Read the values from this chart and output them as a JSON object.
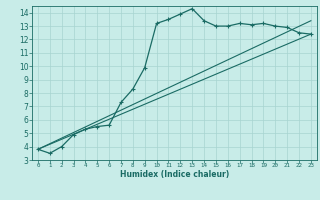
{
  "xlabel": "Humidex (Indice chaleur)",
  "bg_color": "#c8ece8",
  "grid_color": "#a8d4d0",
  "line_color": "#1a6b64",
  "xlim": [
    -0.5,
    23.5
  ],
  "ylim": [
    3,
    14.5
  ],
  "xticks": [
    0,
    1,
    2,
    3,
    4,
    5,
    6,
    7,
    8,
    9,
    10,
    11,
    12,
    13,
    14,
    15,
    16,
    17,
    18,
    19,
    20,
    21,
    22,
    23
  ],
  "yticks": [
    3,
    4,
    5,
    6,
    7,
    8,
    9,
    10,
    11,
    12,
    13,
    14
  ],
  "curve1_x": [
    0,
    1,
    2,
    3,
    4,
    5,
    6,
    7,
    8,
    9,
    10,
    11,
    12,
    13,
    14,
    15,
    16,
    17,
    18,
    19,
    20,
    21,
    22,
    23
  ],
  "curve1_y": [
    3.8,
    3.5,
    4.0,
    4.9,
    5.3,
    5.5,
    5.6,
    7.3,
    8.3,
    9.9,
    13.2,
    13.5,
    13.9,
    14.3,
    13.4,
    13.0,
    13.0,
    13.2,
    13.1,
    13.2,
    13.0,
    12.9,
    12.5,
    12.4
  ],
  "line1_x": [
    0,
    23
  ],
  "line1_y": [
    3.8,
    13.4
  ],
  "line2_x": [
    0,
    23
  ],
  "line2_y": [
    3.8,
    12.4
  ]
}
